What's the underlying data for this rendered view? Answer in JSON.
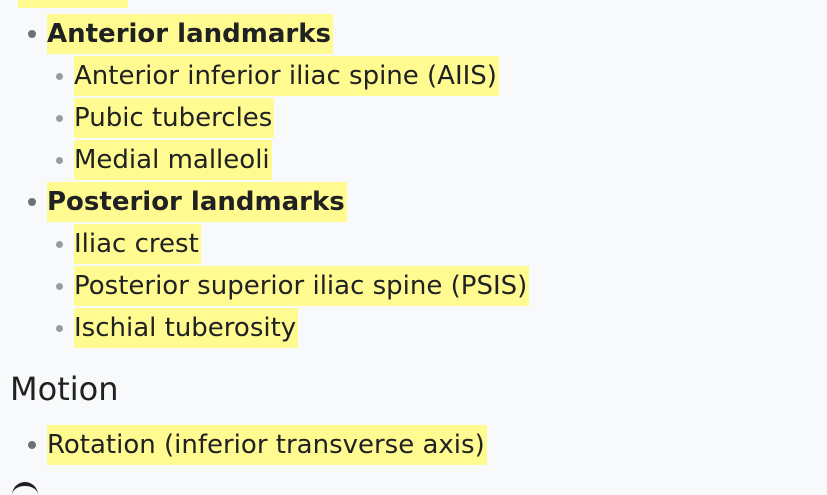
{
  "outline": {
    "groups": [
      {
        "label": "Anterior landmarks",
        "items": [
          "Anterior inferior iliac spine (AIIS)",
          "Pubic tubercles",
          "Medial malleoli"
        ]
      },
      {
        "label": "Posterior landmarks",
        "items": [
          "Iliac crest",
          "Posterior superior iliac spine (PSIS)",
          "Ischial tuberosity"
        ]
      }
    ]
  },
  "motion": {
    "heading": "Motion",
    "items": [
      "Rotation (inferior transverse axis)"
    ]
  },
  "colors": {
    "highlight": "#fffb91",
    "background": "#f8f9fa",
    "text": "#202122",
    "bullet": "#6e7175"
  }
}
